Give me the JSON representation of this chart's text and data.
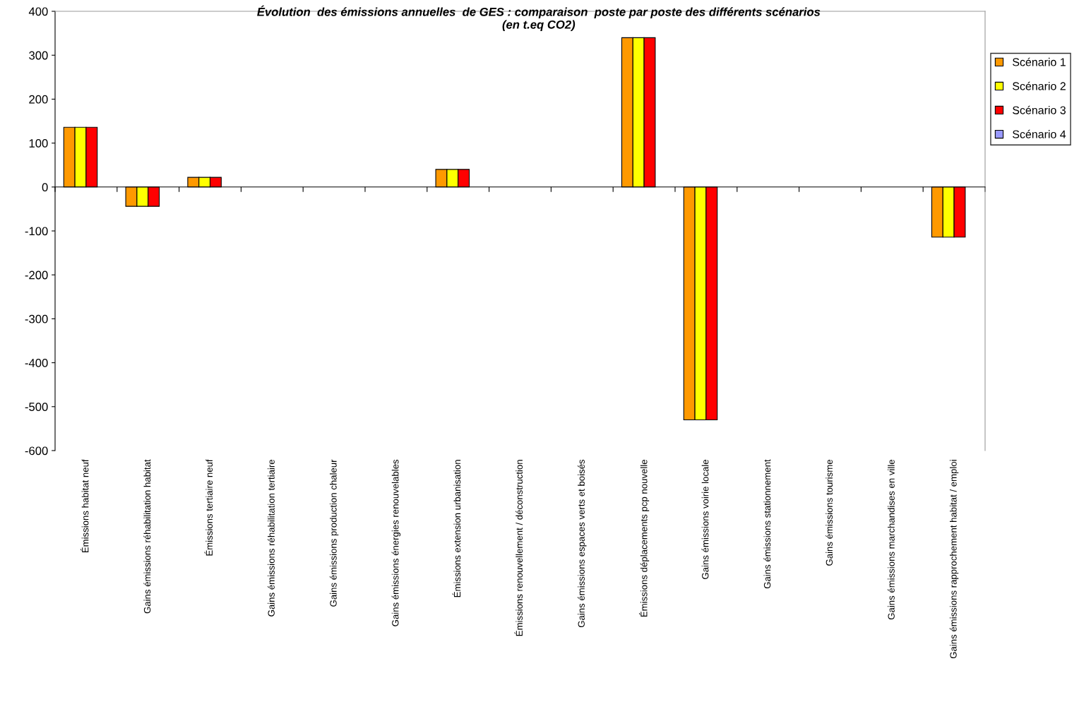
{
  "chart_data": {
    "type": "bar",
    "title": "Évolution  des émissions annuelles  de GES : comparaison  poste par poste des différents scénarios\n(en t.eq CO2)",
    "categories": [
      "Émissions habitat neuf",
      "Gains émissions réhabilitation habitat",
      "Émissions tertiaire neuf",
      "Gains émissions réhabilitation tertiaire",
      "Gains émissions production chaleur",
      "Gains émissions énergies renouvelables",
      "Émissions extension urbanisation",
      "Émissions renouvellement / déconstruction",
      "Gains émissions espaces verts et boisés",
      "Émissions déplacements pcp nouvelle",
      "Gains émissions voirie locale",
      "Gains émissions stationnement",
      "Gains émissions tourisme",
      "Gains émissions marchandises en ville",
      "Gains émissions rapprochement habitat / emploi"
    ],
    "series": [
      {
        "name": "Scénario 1",
        "color": "#ff9900",
        "values": [
          136,
          -44,
          22,
          null,
          null,
          null,
          40,
          null,
          null,
          340,
          -530,
          null,
          null,
          null,
          -114
        ]
      },
      {
        "name": "Scénario 2",
        "color": "#ffff00",
        "values": [
          136,
          -44,
          22,
          null,
          null,
          null,
          40,
          null,
          null,
          340,
          -530,
          null,
          null,
          null,
          -114
        ]
      },
      {
        "name": "Scénario 3",
        "color": "#ff0000",
        "values": [
          136,
          -44,
          22,
          null,
          null,
          null,
          40,
          null,
          null,
          340,
          -530,
          null,
          null,
          null,
          -114
        ]
      },
      {
        "name": "Scénario 4",
        "color": "#9999ff",
        "values": [
          null,
          null,
          null,
          null,
          null,
          null,
          null,
          null,
          null,
          null,
          null,
          null,
          null,
          null,
          null
        ]
      }
    ],
    "ylim": [
      -600,
      400
    ],
    "yticks": [
      -600,
      -500,
      -400,
      -300,
      -200,
      -100,
      0,
      100,
      200,
      300,
      400
    ],
    "legend": "right"
  }
}
